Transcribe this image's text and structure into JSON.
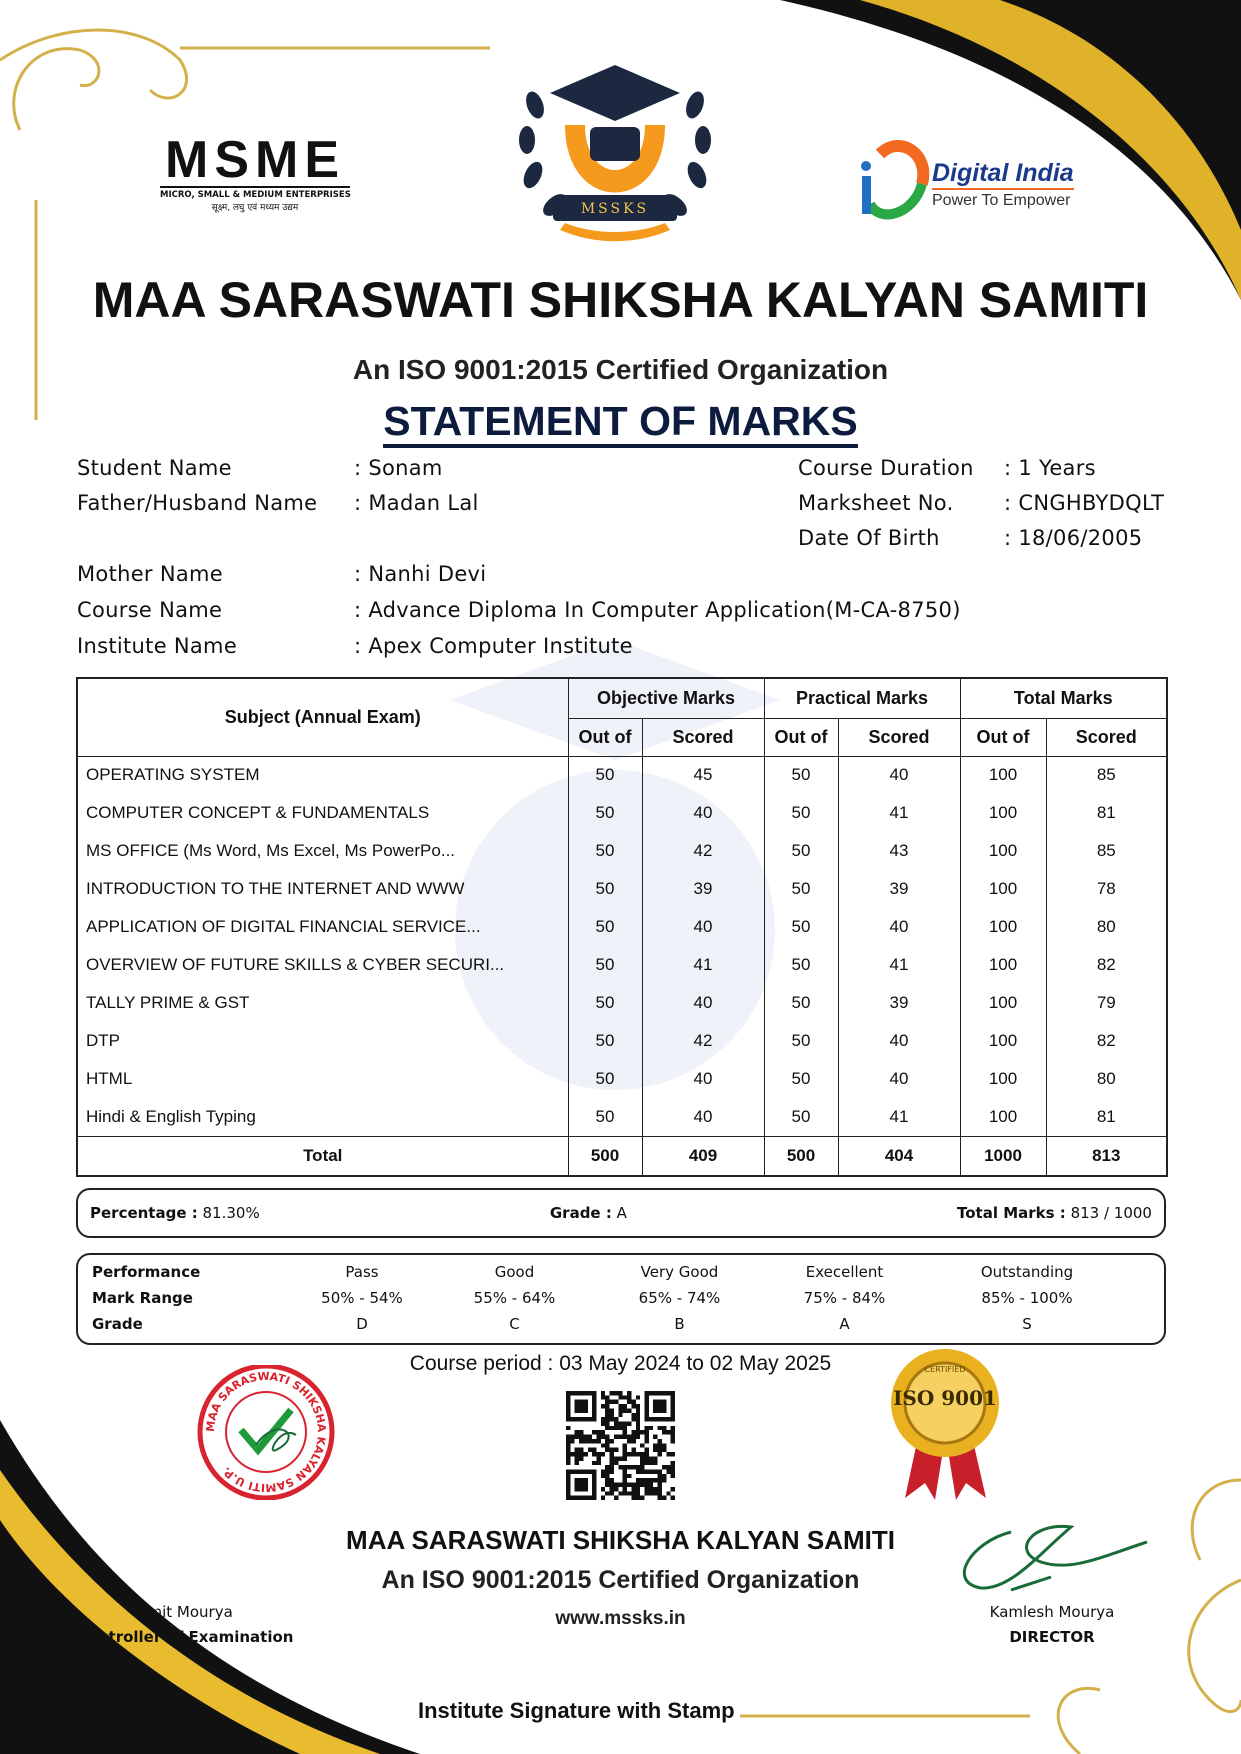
{
  "header": {
    "msme_logo": {
      "text": "MSME",
      "subtitle": "MICRO, SMALL & MEDIUM ENTERPRISES",
      "hindi": "सूक्ष्म, लघु एवं मध्यम उद्यम"
    },
    "center_logo": {
      "text": "MSSKS"
    },
    "digital_india_logo": {
      "text": "Digital India",
      "tagline": "Power To Empower"
    },
    "title": "MAA SARASWATI SHIKSHA KALYAN SAMITI",
    "iso_line": "An ISO 9001:2015 Certified Organization",
    "document_title": "STATEMENT OF MARKS"
  },
  "student": {
    "left": [
      {
        "label": "Student Name",
        "value": ": Sonam"
      },
      {
        "label": "Father/Husband Name",
        "value": ": Madan Lal"
      }
    ],
    "right": [
      {
        "label": "Course Duration",
        "value": ": 1 Years"
      },
      {
        "label": "Marksheet No.",
        "value": ": CNGHBYDQLT"
      },
      {
        "label": "Date Of Birth",
        "value": ": 18/06/2005"
      }
    ],
    "lower": [
      {
        "label": "Mother Name",
        "value": ": Nanhi Devi"
      },
      {
        "label": "Course Name",
        "value": ": Advance Diploma In Computer Application(M-CA-8750)"
      },
      {
        "label": "Institute Name",
        "value": ": Apex Computer Institute"
      }
    ]
  },
  "marks_table": {
    "subject_header": "Subject (Annual Exam)",
    "groups": [
      "Objective Marks",
      "Practical Marks",
      "Total Marks"
    ],
    "sub_headers": [
      "Out of",
      "Scored",
      "Out of",
      "Scored",
      "Out of",
      "Scored"
    ],
    "rows": [
      [
        "OPERATING SYSTEM",
        "50",
        "45",
        "50",
        "40",
        "100",
        "85"
      ],
      [
        "COMPUTER CONCEPT & FUNDAMENTALS",
        "50",
        "40",
        "50",
        "41",
        "100",
        "81"
      ],
      [
        "MS OFFICE (Ms Word, Ms Excel, Ms PowerPo...",
        "50",
        "42",
        "50",
        "43",
        "100",
        "85"
      ],
      [
        "INTRODUCTION TO THE INTERNET AND WWW",
        "50",
        "39",
        "50",
        "39",
        "100",
        "78"
      ],
      [
        "APPLICATION OF DIGITAL FINANCIAL SERVICE...",
        "50",
        "40",
        "50",
        "40",
        "100",
        "80"
      ],
      [
        "OVERVIEW OF FUTURE SKILLS & CYBER SECURI...",
        "50",
        "41",
        "50",
        "41",
        "100",
        "82"
      ],
      [
        "TALLY PRIME & GST",
        "50",
        "40",
        "50",
        "39",
        "100",
        "79"
      ],
      [
        "DTP",
        "50",
        "42",
        "50",
        "40",
        "100",
        "82"
      ],
      [
        "HTML",
        "50",
        "40",
        "50",
        "40",
        "100",
        "80"
      ],
      [
        "Hindi & English Typing",
        "50",
        "40",
        "50",
        "41",
        "100",
        "81"
      ]
    ],
    "total": [
      "Total",
      "500",
      "409",
      "500",
      "404",
      "1000",
      "813"
    ]
  },
  "summary": {
    "percentage_label": "Percentage :",
    "percentage": "81.30%",
    "grade_label": "Grade :",
    "grade": "A",
    "total_label": "Total Marks :",
    "total": "813 / 1000"
  },
  "grading": {
    "labels": [
      "Performance",
      "Mark Range",
      "Grade"
    ],
    "performance": [
      "Pass",
      "Good",
      "Very Good",
      "Execellent",
      "Outstanding"
    ],
    "range": [
      "50% - 54%",
      "55% - 64%",
      "65% - 74%",
      "75% - 84%",
      "85% - 100%"
    ],
    "grade": [
      "D",
      "C",
      "B",
      "A",
      "S"
    ]
  },
  "course_period": "Course period : 03 May 2024 to 02 May 2025",
  "stamp": {
    "text": "MAA SARASWATI SHIKSHA KALYAN SAMITI U.P."
  },
  "iso_seal": {
    "text": "ISO 9001",
    "ring": "CERTIFIED"
  },
  "footer": {
    "title": "MAA SARASWATI SHIKSHA KALYAN SAMITI",
    "iso_line": "An ISO 9001:2015 Certified Organization",
    "website": "www.mssks.in",
    "left_sign_name": "Amit Mourya",
    "left_sign_role": "Controller of Examination",
    "right_sign_name": "Kamlesh Mourya",
    "right_sign_role": "DIRECTOR",
    "institute_signature": "Institute Signature with Stamp"
  },
  "colors": {
    "gold": "#d9a520",
    "navy": "#0d1b3e",
    "stamp_red": "#d9232e",
    "signature_green": "#1a6b3a"
  }
}
